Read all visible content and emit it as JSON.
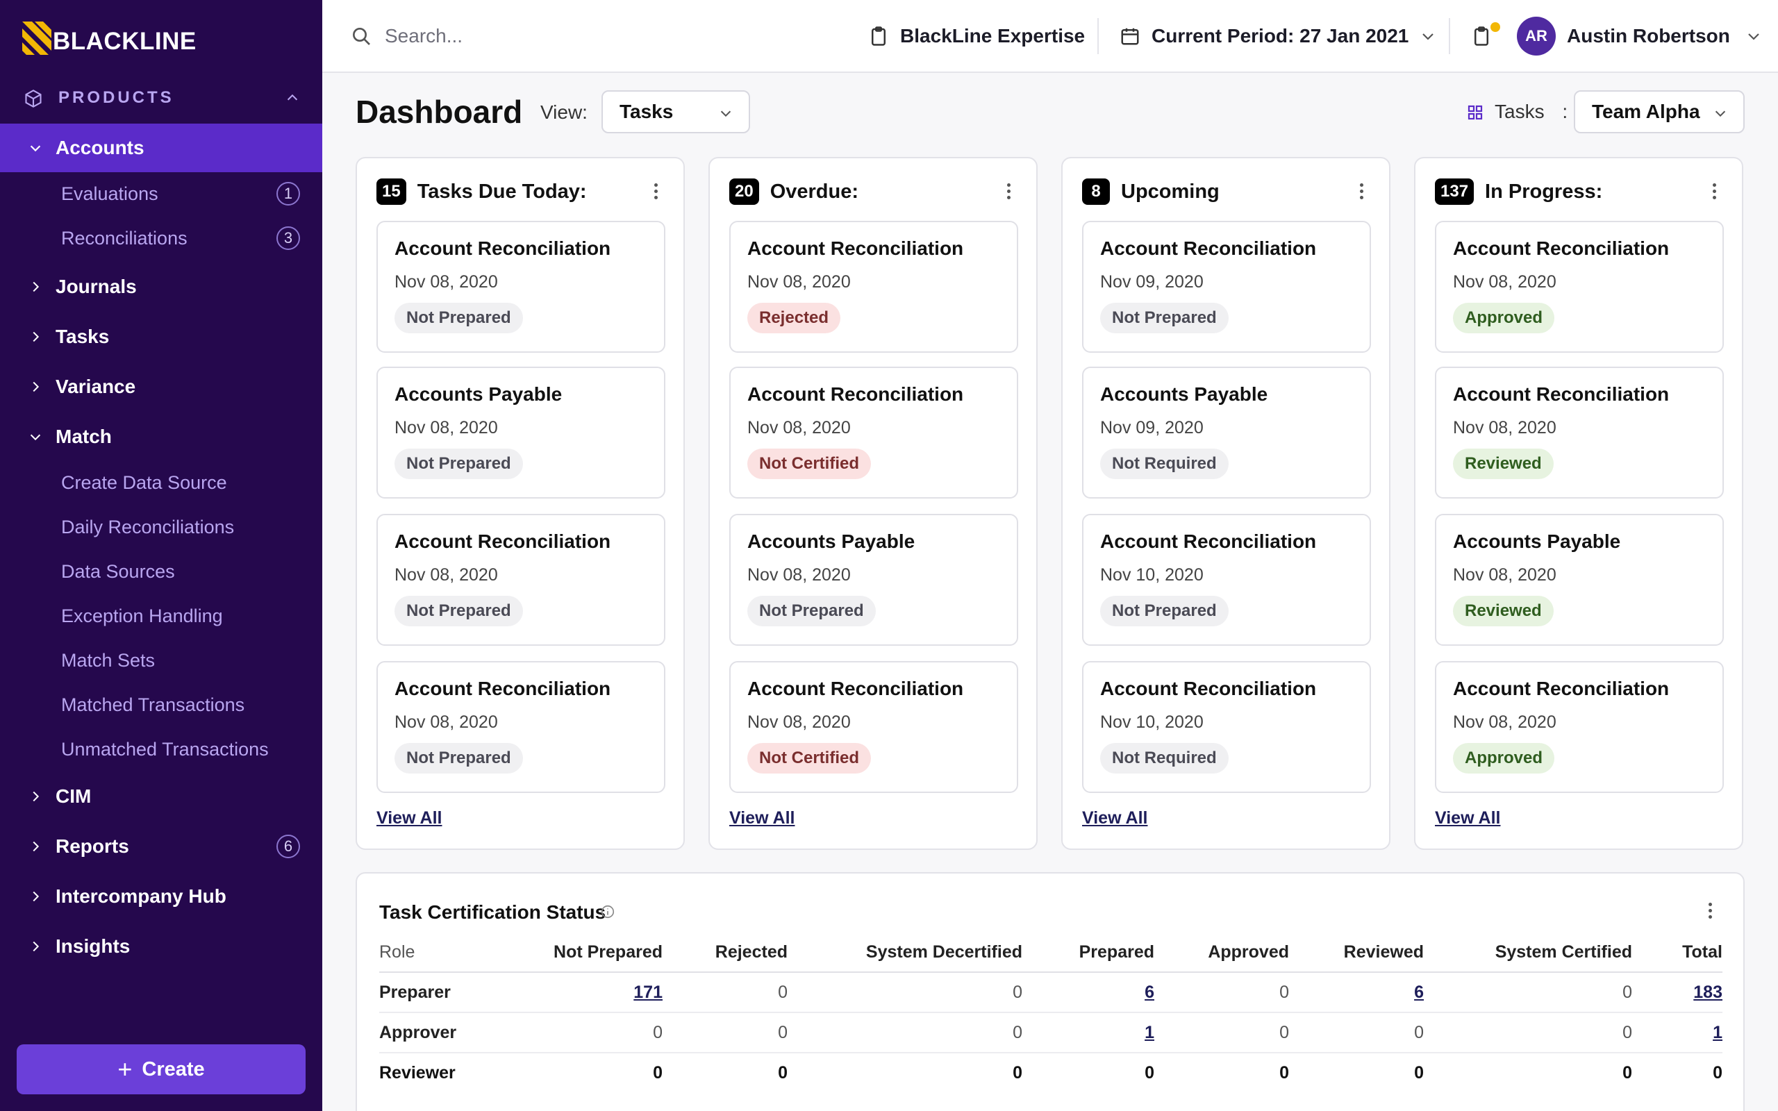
{
  "brand": {
    "name": "BLACKLINE",
    "accent": "#6b3fd9",
    "sidebar_bg": "#25084d",
    "logo_color": "#f2b705"
  },
  "sidebar": {
    "section_label": "PRODUCTS",
    "items": [
      {
        "label": "Accounts",
        "expanded": true,
        "active": true
      },
      {
        "label": "Evaluations",
        "count": "1"
      },
      {
        "label": "Reconciliations",
        "count": "3"
      },
      {
        "label": "Journals"
      },
      {
        "label": "Tasks"
      },
      {
        "label": "Variance"
      },
      {
        "label": "Match",
        "expanded": true
      },
      {
        "label": "Create Data Source"
      },
      {
        "label": "Daily Reconciliations"
      },
      {
        "label": "Data Sources"
      },
      {
        "label": "Exception Handling"
      },
      {
        "label": "Match Sets"
      },
      {
        "label": "Matched Transactions"
      },
      {
        "label": "Unmatched Transactions"
      },
      {
        "label": "CIM"
      },
      {
        "label": "Reports",
        "count": "6"
      },
      {
        "label": "Intercompany Hub"
      },
      {
        "label": "Insights"
      }
    ],
    "create_label": "Create"
  },
  "header": {
    "search_placeholder": "Search...",
    "expertise_label": "BlackLine Expertise",
    "period_label": "Current Period: 27 Jan 2021",
    "avatar_initials": "AR",
    "user_name": "Austin Robertson"
  },
  "dashboard": {
    "title": "Dashboard",
    "view_label": "View:",
    "view_value": "Tasks",
    "tasks_label": "Tasks",
    "tasks_sep": ":",
    "team_value": "Team Alpha",
    "view_all_label": "View All",
    "columns": [
      {
        "count": "15",
        "title": "Tasks Due Today:",
        "cards": [
          {
            "title": "Account Reconciliation",
            "date": "Nov 08, 2020",
            "status": "Not Prepared",
            "tone": "neutral"
          },
          {
            "title": "Accounts Payable",
            "date": "Nov 08, 2020",
            "status": "Not Prepared",
            "tone": "neutral"
          },
          {
            "title": "Account Reconciliation",
            "date": "Nov 08, 2020",
            "status": "Not Prepared",
            "tone": "neutral"
          },
          {
            "title": "Account Reconciliation",
            "date": "Nov 08, 2020",
            "status": "Not Prepared",
            "tone": "neutral"
          }
        ]
      },
      {
        "count": "20",
        "title": "Overdue:",
        "cards": [
          {
            "title": "Account Reconciliation",
            "date": "Nov 08, 2020",
            "status": "Rejected",
            "tone": "red"
          },
          {
            "title": "Account Reconciliation",
            "date": "Nov 08, 2020",
            "status": "Not Certified",
            "tone": "red"
          },
          {
            "title": "Accounts Payable",
            "date": "Nov 08, 2020",
            "status": "Not Prepared",
            "tone": "neutral"
          },
          {
            "title": "Account Reconciliation",
            "date": "Nov 08, 2020",
            "status": "Not Certified",
            "tone": "red"
          }
        ]
      },
      {
        "count": "8",
        "title": "Upcoming",
        "cards": [
          {
            "title": "Account Reconciliation",
            "date": "Nov 09, 2020",
            "status": "Not Prepared",
            "tone": "neutral"
          },
          {
            "title": "Accounts Payable",
            "date": "Nov 09, 2020",
            "status": "Not Required",
            "tone": "neutral"
          },
          {
            "title": "Account Reconciliation",
            "date": "Nov 10, 2020",
            "status": "Not Prepared",
            "tone": "neutral"
          },
          {
            "title": "Account Reconciliation",
            "date": "Nov 10, 2020",
            "status": "Not Required",
            "tone": "neutral"
          }
        ]
      },
      {
        "count": "137",
        "title": "In Progress:",
        "cards": [
          {
            "title": "Account Reconciliation",
            "date": "Nov 08, 2020",
            "status": "Approved",
            "tone": "green"
          },
          {
            "title": "Account Reconciliation",
            "date": "Nov 08, 2020",
            "status": "Reviewed",
            "tone": "green"
          },
          {
            "title": "Accounts Payable",
            "date": "Nov 08, 2020",
            "status": "Reviewed",
            "tone": "green"
          },
          {
            "title": "Account Reconciliation",
            "date": "Nov 08, 2020",
            "status": "Approved",
            "tone": "green"
          }
        ]
      }
    ]
  },
  "certification": {
    "title": "Task Certification Status",
    "columns": [
      "Role",
      "Not Prepared",
      "Rejected",
      "System Decertified",
      "Prepared",
      "Approved",
      "Reviewed",
      "System Certified",
      "Total"
    ],
    "rows": [
      {
        "cells": [
          "Preparer",
          "171",
          "0",
          "0",
          "6",
          "0",
          "6",
          "0",
          "183"
        ],
        "links": [
          1,
          4,
          6,
          8
        ],
        "bold": false
      },
      {
        "cells": [
          "Approver",
          "0",
          "0",
          "0",
          "1",
          "0",
          "0",
          "0",
          "1"
        ],
        "links": [
          4,
          8
        ],
        "bold": false
      },
      {
        "cells": [
          "Reviewer",
          "0",
          "0",
          "0",
          "0",
          "0",
          "0",
          "0",
          "0"
        ],
        "links": [],
        "bold": true
      }
    ]
  }
}
